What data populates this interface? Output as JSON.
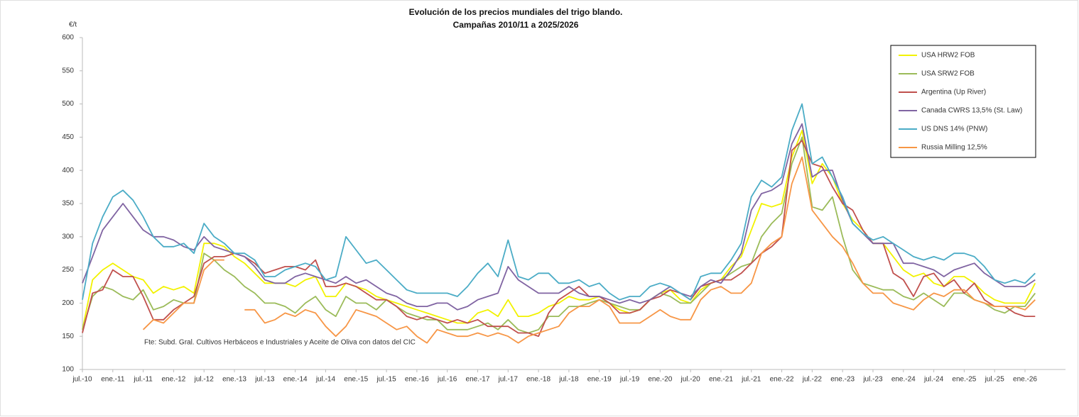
{
  "chart_data": {
    "type": "line",
    "title": "Evolución de los precios mundiales del trigo blando.",
    "subtitle": "Campañas 2010/11 a 2025/2026",
    "y_label": "€/t",
    "note": "Fte: Subd. Gral. Cultivos Herbáceos e Industriales y Aceite de Oliva con datos del CIC",
    "categories": [
      "jul.-10",
      null,
      null,
      "ene.-11",
      null,
      null,
      "jul.-11",
      null,
      null,
      "ene.-12",
      null,
      null,
      "jul.-12",
      null,
      null,
      "ene.-13",
      null,
      null,
      "jul.-13",
      null,
      null,
      "ene.-14",
      null,
      null,
      "jul.-14",
      null,
      null,
      "ene.-15",
      null,
      null,
      "jul.-15",
      null,
      null,
      "ene.-16",
      null,
      null,
      "jul.-16",
      null,
      null,
      "ene.-17",
      null,
      null,
      "jul.-17",
      null,
      null,
      "ene.-18",
      null,
      null,
      "jul.-18",
      null,
      null,
      "ene.-19",
      null,
      null,
      "jul.-19",
      null,
      null,
      "ene.-20",
      null,
      null,
      "jul.-20",
      null,
      null,
      "ene.-21",
      null,
      null,
      "jul.-21",
      null,
      null,
      "ene.-22",
      null,
      null,
      "jul.-22",
      null,
      null,
      "ene.-23",
      null,
      null,
      "jul.-23",
      null,
      null,
      "ene.-24",
      null,
      null,
      "jul.-24",
      null,
      null,
      "ene.-25",
      null,
      null,
      "jul.-25",
      null,
      null,
      "ene.-26",
      null
    ],
    "ylim": [
      100,
      600
    ],
    "yticks": [
      100,
      150,
      200,
      250,
      300,
      350,
      400,
      450,
      500,
      550,
      600
    ],
    "grid": false,
    "legend": "top-right",
    "series": [
      {
        "name": "USA HRW2 FOB",
        "color": "#f2f200",
        "values": [
          160,
          235,
          250,
          260,
          250,
          240,
          235,
          215,
          225,
          220,
          225,
          215,
          290,
          290,
          285,
          270,
          260,
          245,
          230,
          230,
          230,
          225,
          235,
          240,
          210,
          210,
          230,
          225,
          220,
          210,
          205,
          200,
          195,
          190,
          185,
          180,
          175,
          170,
          170,
          185,
          190,
          180,
          205,
          180,
          180,
          185,
          195,
          200,
          210,
          205,
          205,
          210,
          200,
          190,
          185,
          190,
          205,
          215,
          220,
          205,
          200,
          220,
          230,
          235,
          255,
          270,
          310,
          350,
          345,
          350,
          420,
          460,
          380,
          410,
          390,
          350,
          325,
          310,
          290,
          290,
          270,
          250,
          240,
          245,
          230,
          225,
          240,
          240,
          230,
          215,
          205,
          200,
          200,
          200,
          230
        ]
      },
      {
        "name": "USA SRW2 FOB",
        "color": "#9bbb59",
        "values": [
          160,
          210,
          225,
          220,
          210,
          205,
          220,
          190,
          195,
          205,
          200,
          200,
          275,
          265,
          250,
          240,
          225,
          215,
          200,
          200,
          195,
          185,
          200,
          210,
          190,
          180,
          210,
          200,
          200,
          190,
          205,
          195,
          185,
          180,
          175,
          175,
          160,
          160,
          160,
          165,
          170,
          160,
          175,
          160,
          155,
          160,
          180,
          180,
          195,
          195,
          200,
          205,
          200,
          195,
          190,
          190,
          205,
          215,
          210,
          200,
          200,
          215,
          230,
          235,
          245,
          255,
          260,
          300,
          320,
          335,
          410,
          450,
          345,
          340,
          360,
          300,
          250,
          230,
          225,
          220,
          220,
          210,
          205,
          215,
          205,
          195,
          215,
          215,
          205,
          200,
          190,
          185,
          195,
          195,
          215
        ]
      },
      {
        "name": "Argentina (Up River)",
        "color": "#c0504d",
        "values": [
          155,
          215,
          220,
          250,
          240,
          240,
          210,
          175,
          175,
          190,
          200,
          210,
          260,
          270,
          270,
          275,
          270,
          260,
          245,
          250,
          255,
          255,
          250,
          265,
          225,
          225,
          230,
          225,
          215,
          205,
          205,
          195,
          180,
          175,
          180,
          175,
          170,
          175,
          170,
          175,
          165,
          165,
          165,
          155,
          155,
          150,
          185,
          205,
          215,
          225,
          210,
          210,
          200,
          185,
          185,
          190,
          205,
          210,
          220,
          215,
          205,
          225,
          230,
          235,
          235,
          245,
          260,
          275,
          285,
          300,
          430,
          445,
          410,
          405,
          375,
          350,
          340,
          310,
          290,
          290,
          245,
          235,
          210,
          240,
          245,
          225,
          235,
          215,
          230,
          205,
          195,
          195,
          185,
          180,
          180
        ]
      },
      {
        "name": "Canada CWRS 13,5% (St. Law)",
        "color": "#8064a2",
        "values": [
          230,
          270,
          310,
          330,
          350,
          330,
          310,
          300,
          300,
          295,
          285,
          280,
          300,
          285,
          280,
          275,
          270,
          255,
          235,
          230,
          230,
          240,
          245,
          240,
          235,
          230,
          240,
          230,
          235,
          225,
          215,
          210,
          200,
          195,
          195,
          200,
          200,
          190,
          195,
          205,
          210,
          215,
          255,
          235,
          225,
          215,
          215,
          215,
          225,
          215,
          210,
          210,
          205,
          200,
          205,
          200,
          205,
          215,
          225,
          215,
          210,
          225,
          235,
          230,
          250,
          275,
          340,
          365,
          370,
          380,
          440,
          470,
          390,
          400,
          400,
          355,
          320,
          305,
          290,
          290,
          290,
          260,
          260,
          255,
          250,
          240,
          250,
          255,
          260,
          245,
          235,
          225,
          225,
          225,
          235
        ]
      },
      {
        "name": "US DNS 14% (PNW)",
        "color": "#4bacc6",
        "values": [
          205,
          290,
          330,
          360,
          370,
          355,
          330,
          300,
          285,
          285,
          290,
          275,
          320,
          300,
          290,
          275,
          275,
          265,
          240,
          240,
          250,
          255,
          260,
          255,
          235,
          240,
          300,
          280,
          260,
          265,
          250,
          235,
          220,
          215,
          215,
          215,
          215,
          210,
          225,
          245,
          260,
          240,
          295,
          240,
          235,
          245,
          245,
          230,
          230,
          235,
          225,
          230,
          215,
          205,
          210,
          210,
          225,
          230,
          225,
          215,
          205,
          240,
          245,
          245,
          265,
          290,
          360,
          385,
          375,
          390,
          460,
          500,
          410,
          420,
          390,
          360,
          320,
          305,
          295,
          300,
          290,
          280,
          270,
          265,
          270,
          265,
          275,
          275,
          270,
          255,
          235,
          230,
          235,
          230,
          245
        ]
      },
      {
        "name": "Russia Milling 12,5%",
        "color": "#f79646",
        "values": [
          null,
          null,
          null,
          null,
          null,
          null,
          160,
          175,
          170,
          185,
          200,
          200,
          250,
          265,
          265,
          null,
          190,
          190,
          170,
          175,
          185,
          180,
          190,
          185,
          165,
          150,
          165,
          190,
          185,
          180,
          170,
          160,
          165,
          150,
          140,
          160,
          155,
          150,
          150,
          155,
          150,
          155,
          150,
          140,
          150,
          155,
          160,
          165,
          185,
          195,
          195,
          205,
          195,
          170,
          170,
          170,
          180,
          190,
          180,
          175,
          175,
          205,
          220,
          225,
          215,
          215,
          230,
          275,
          290,
          300,
          380,
          420,
          340,
          320,
          300,
          285,
          260,
          230,
          215,
          215,
          200,
          195,
          190,
          205,
          215,
          210,
          220,
          220,
          205,
          200,
          195,
          195,
          195,
          190,
          205
        ]
      }
    ]
  }
}
